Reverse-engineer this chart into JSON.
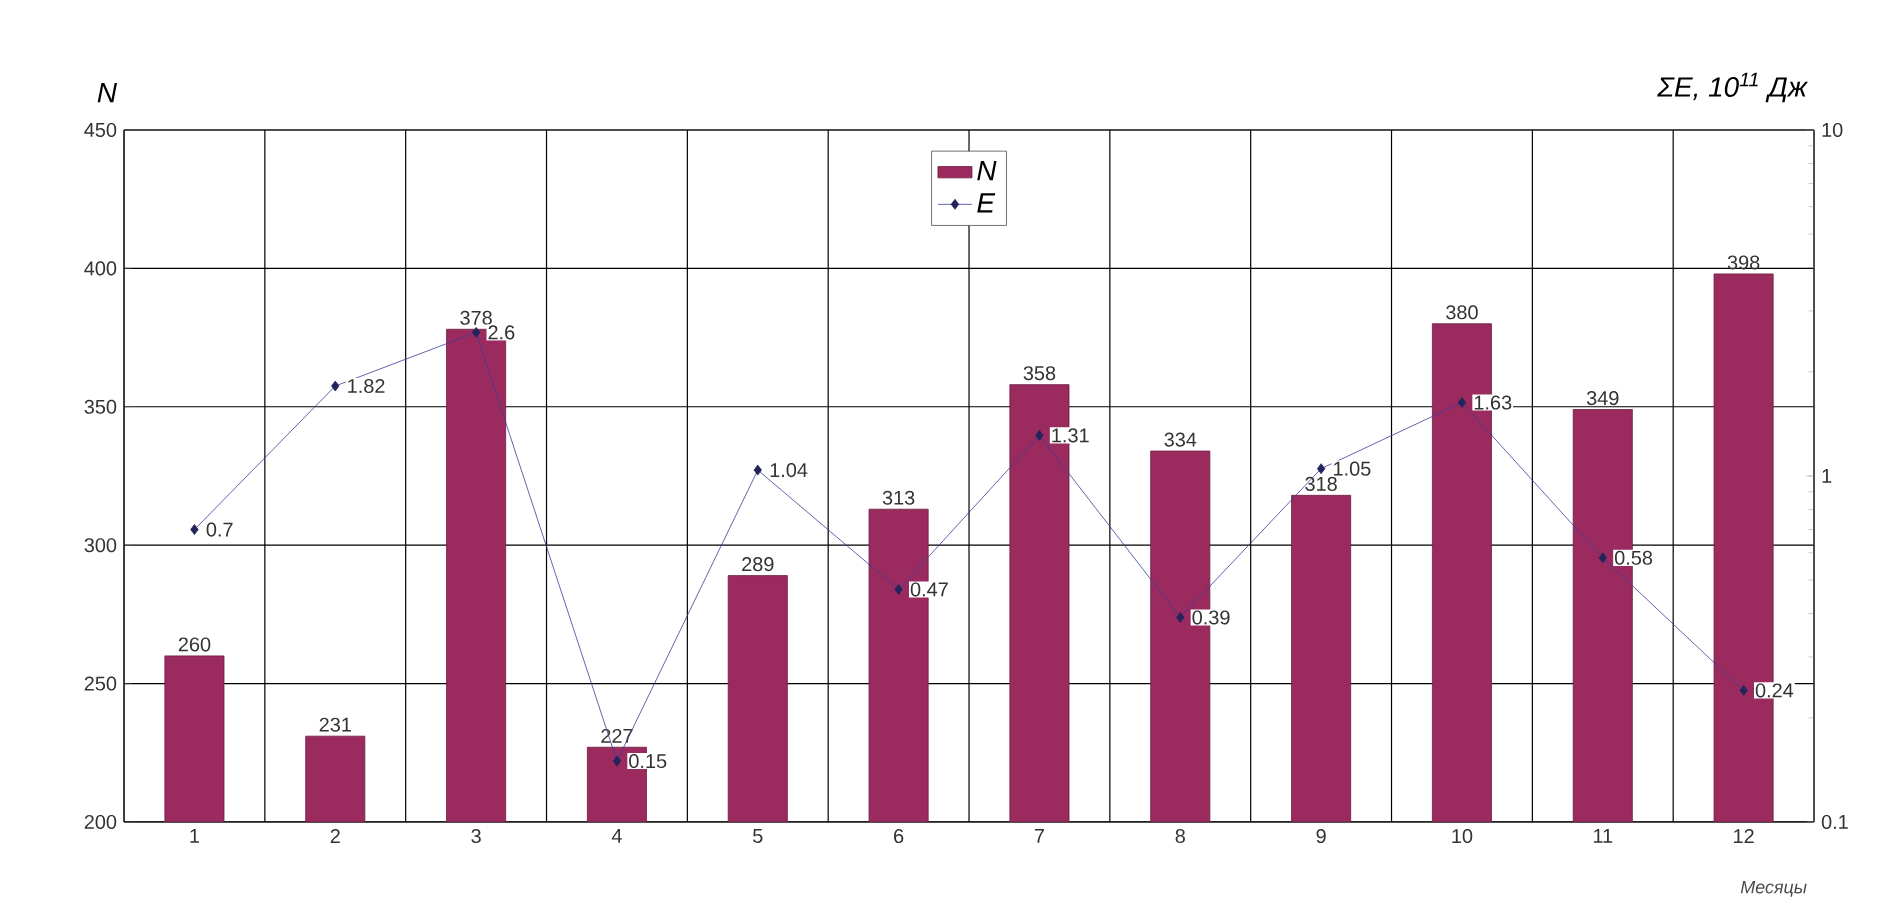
{
  "chart_data": {
    "type": "bar",
    "ylabel": "N",
    "y2label": "ΣE, 10$^{11}$ Дж",
    "xlabel": "Месяцы",
    "categories": [
      "1",
      "2",
      "3",
      "4",
      "5",
      "6",
      "7",
      "8",
      "9",
      "10",
      "11",
      "12"
    ],
    "series": [
      {
        "name": "N",
        "color": "#9b2a5e",
        "values": [
          260,
          231,
          378,
          227,
          289,
          313,
          358,
          334,
          318,
          380,
          349,
          398
        ]
      },
      {
        "name": "E",
        "type": "line",
        "axis": "y2",
        "color": "#3c3c9a",
        "marker": "diamond",
        "values": [
          0.7,
          1.82,
          2.6,
          0.15,
          1.04,
          0.47,
          1.31,
          0.39,
          1.05,
          1.63,
          0.58,
          0.24
        ]
      }
    ],
    "ylim": [
      200,
      450
    ],
    "yticks": [
      200,
      250,
      300,
      350,
      400,
      450
    ],
    "y2lim": [
      0.1,
      10
    ],
    "y2ticks": [
      0.1,
      1,
      10
    ],
    "log": "y2",
    "grid": true,
    "legend": "top",
    "data_labels": true
  }
}
